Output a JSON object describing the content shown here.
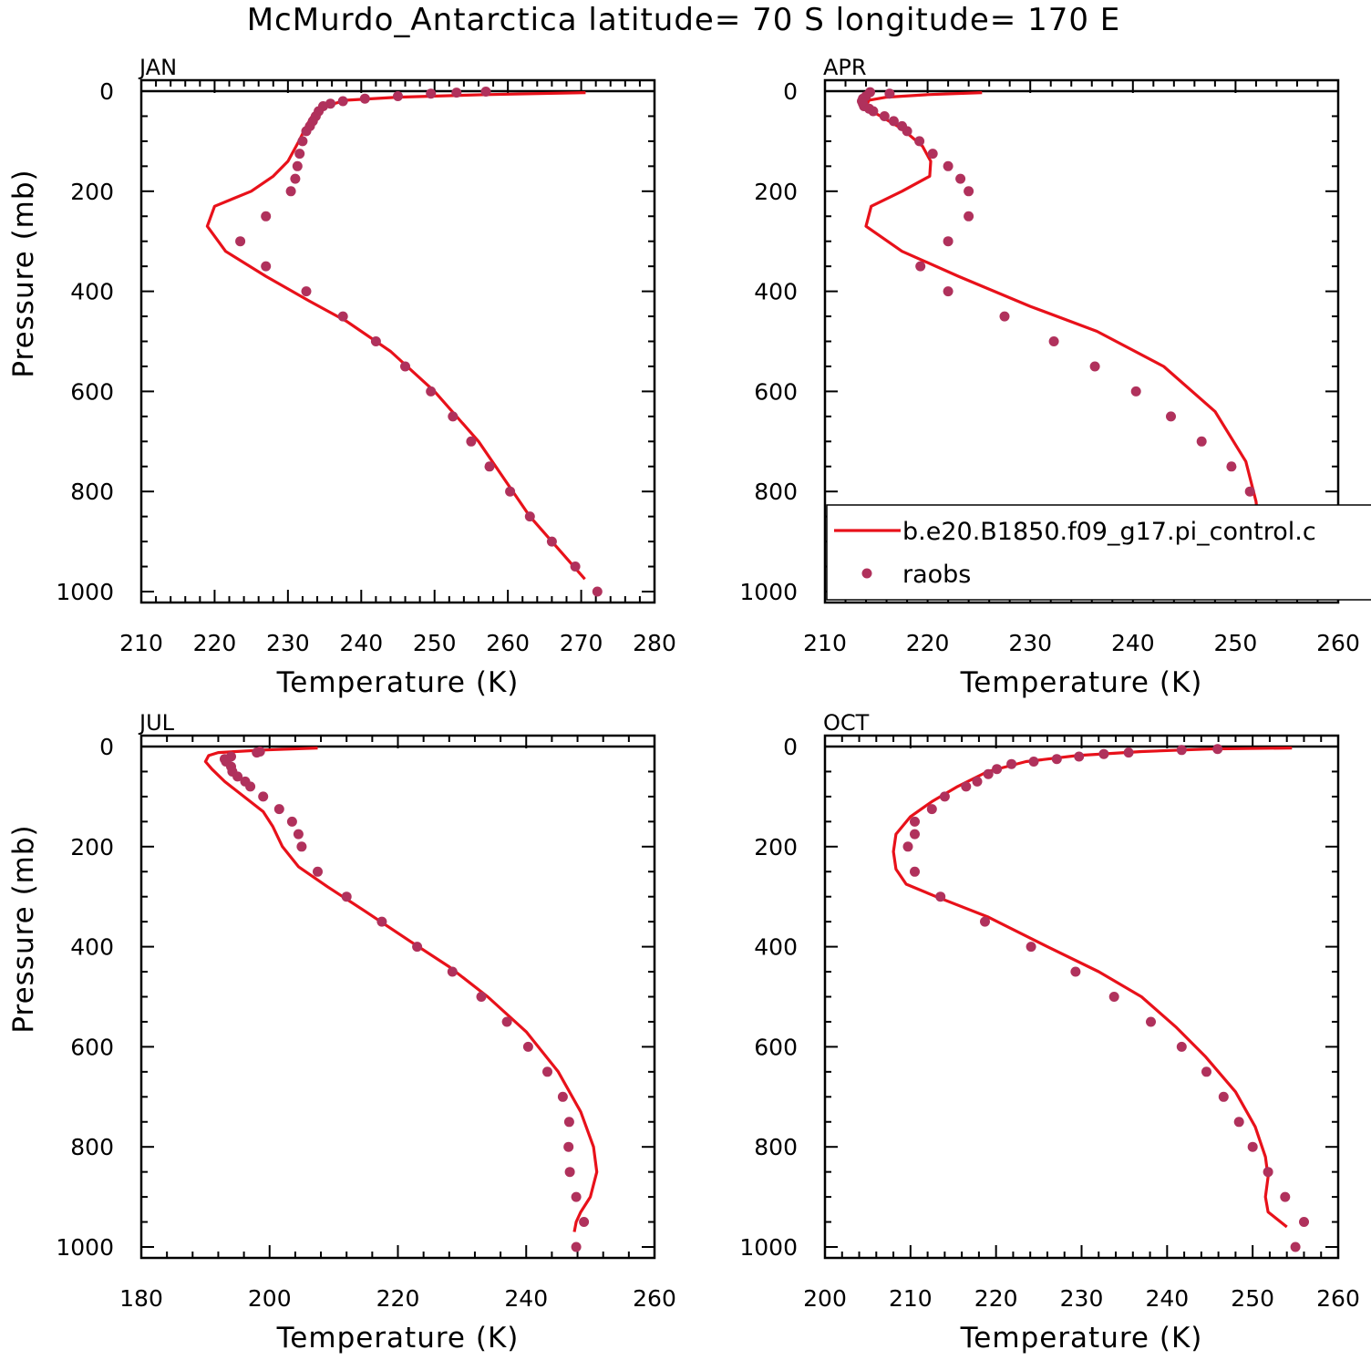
{
  "title": "McMurdo_Antarctica  latitude= 70 S longitude= 170 E",
  "colors": {
    "model": "#e8111a",
    "obs": "#b0315c",
    "axis": "#000000"
  },
  "legend": {
    "model": "b.e20.B1850.f09_g17.pi_control.c",
    "obs": "raobs"
  },
  "chart_data": [
    {
      "type": "line",
      "panel": "JAN",
      "xlabel": "Temperature (K)",
      "ylabel": "Pressure (mb)",
      "xlim": [
        210,
        280
      ],
      "xticks": [
        210,
        220,
        230,
        240,
        250,
        260,
        270,
        280
      ],
      "ylim": [
        0,
        1000
      ],
      "yticks": [
        0,
        200,
        400,
        600,
        800,
        1000
      ],
      "y_inverted": true,
      "series": [
        {
          "name": "b.e20.B1850.f09_g17.pi_control.c",
          "kind": "line",
          "x": [
            270.6,
            257.0,
            245.0,
            238.0,
            235.0,
            233.5,
            232.5,
            231.5,
            230.0,
            228.0,
            225.0,
            220.0,
            219.0,
            221.5,
            227.0,
            233.0,
            238.0,
            244.0,
            250.0,
            256.0,
            263.0,
            270.5
          ],
          "y": [
            3,
            7,
            12,
            18,
            30,
            45,
            70,
            100,
            140,
            170,
            200,
            230,
            270,
            320,
            370,
            420,
            460,
            520,
            600,
            700,
            850,
            975
          ]
        },
        {
          "name": "raobs",
          "kind": "scatter",
          "x": [
            257.0,
            253.0,
            249.5,
            245.0,
            240.5,
            237.5,
            235.8,
            234.8,
            234.2,
            233.8,
            233.4,
            233.0,
            232.5,
            232.0,
            231.6,
            231.3,
            231.0,
            230.4,
            227.0,
            223.5,
            227.0,
            232.5,
            237.5,
            242.0,
            246.0,
            249.5,
            252.5,
            255.0,
            257.5,
            260.3,
            263.0,
            266.0,
            269.2,
            272.2
          ],
          "y": [
            1,
            3,
            5,
            10,
            15,
            20,
            25,
            30,
            40,
            50,
            60,
            70,
            80,
            100,
            125,
            150,
            175,
            200,
            250,
            300,
            350,
            400,
            450,
            500,
            550,
            600,
            650,
            700,
            750,
            800,
            850,
            900,
            950,
            1000
          ]
        }
      ]
    },
    {
      "type": "line",
      "panel": "APR",
      "xlabel": "Temperature (K)",
      "ylabel": "",
      "xlim": [
        210,
        260
      ],
      "xticks": [
        210,
        220,
        230,
        240,
        250,
        260
      ],
      "ylim": [
        0,
        1000
      ],
      "yticks": [
        0,
        200,
        400,
        600,
        800,
        1000
      ],
      "y_inverted": true,
      "series": [
        {
          "name": "b.e20.B1850.f09_g17.pi_control.c",
          "kind": "line",
          "x": [
            225.3,
            220.0,
            216.0,
            214.3,
            214.0,
            215.0,
            217.5,
            219.5,
            220.3,
            220.2,
            217.5,
            214.5,
            214.0,
            217.5,
            223.0,
            230.0,
            236.5,
            243.0,
            248.0,
            251.0,
            252.0,
            252.2,
            251.8,
            250.8,
            250.5,
            250.8
          ],
          "y": [
            3,
            7,
            12,
            18,
            30,
            45,
            75,
            110,
            140,
            170,
            200,
            230,
            270,
            320,
            370,
            430,
            480,
            550,
            640,
            740,
            820,
            860,
            890,
            920,
            950,
            975
          ]
        },
        {
          "name": "raobs",
          "kind": "scatter",
          "x": [
            214.4,
            216.3,
            214.0,
            213.7,
            213.6,
            213.7,
            213.8,
            214.3,
            214.7,
            215.8,
            216.7,
            217.5,
            218.0,
            219.2,
            220.5,
            222.0,
            223.2,
            224.0,
            224.0,
            222.0,
            219.3,
            222.0,
            227.5,
            232.3,
            236.3,
            240.3,
            243.7,
            246.7,
            249.6,
            251.4,
            252.1,
            252.4,
            254.0,
            255.9,
            256.3
          ],
          "y": [
            2,
            5,
            10,
            15,
            20,
            25,
            30,
            35,
            40,
            50,
            60,
            70,
            80,
            100,
            125,
            150,
            175,
            200,
            250,
            300,
            350,
            400,
            450,
            500,
            550,
            600,
            650,
            700,
            750,
            800,
            850,
            900,
            950,
            1000,
            1000
          ]
        }
      ]
    },
    {
      "type": "line",
      "panel": "JUL",
      "xlabel": "Temperature (K)",
      "ylabel": "Pressure (mb)",
      "xlim": [
        180,
        260
      ],
      "xticks": [
        180,
        200,
        220,
        240,
        260
      ],
      "ylim": [
        0,
        1000
      ],
      "yticks": [
        0,
        200,
        400,
        600,
        800,
        1000
      ],
      "y_inverted": true,
      "series": [
        {
          "name": "b.e20.B1850.f09_g17.pi_control.c",
          "kind": "line",
          "x": [
            207.5,
            199.0,
            192.0,
            190.5,
            190.0,
            191.0,
            193.0,
            196.0,
            199.0,
            200.5,
            202.0,
            204.5,
            209.0,
            215.0,
            222.0,
            228.0,
            234.0,
            240.0,
            245.0,
            248.5,
            250.5,
            251.0,
            250.0,
            248.5,
            247.8,
            247.5
          ],
          "y": [
            3,
            7,
            12,
            18,
            30,
            45,
            70,
            100,
            130,
            160,
            200,
            240,
            280,
            330,
            390,
            440,
            500,
            570,
            650,
            730,
            800,
            850,
            900,
            930,
            950,
            970
          ]
        },
        {
          "name": "raobs",
          "kind": "scatter",
          "x": [
            198.5,
            198.0,
            194.0,
            193.0,
            193.2,
            194.0,
            194.2,
            195.0,
            196.2,
            197.0,
            199.0,
            201.5,
            203.5,
            204.5,
            205.0,
            207.5,
            212.0,
            217.5,
            223.0,
            228.5,
            233.0,
            237.0,
            240.3,
            243.3,
            245.7,
            246.7,
            246.6,
            246.8,
            247.8,
            249.0,
            247.8
          ],
          "y": [
            10,
            12,
            20,
            25,
            30,
            40,
            50,
            60,
            70,
            80,
            100,
            125,
            150,
            175,
            200,
            250,
            300,
            350,
            400,
            450,
            500,
            550,
            600,
            650,
            700,
            750,
            800,
            850,
            900,
            950,
            1000
          ]
        }
      ]
    },
    {
      "type": "line",
      "panel": "OCT",
      "xlabel": "Temperature (K)",
      "ylabel": "",
      "xlim": [
        200,
        260
      ],
      "xticks": [
        200,
        210,
        220,
        230,
        240,
        250,
        260
      ],
      "ylim": [
        0,
        1000
      ],
      "yticks": [
        0,
        200,
        400,
        600,
        800,
        1000
      ],
      "y_inverted": true,
      "series": [
        {
          "name": "b.e20.B1850.f09_g17.pi_control.c",
          "kind": "line",
          "x": [
            254.6,
            245.0,
            237.0,
            229.5,
            223.5,
            219.0,
            215.5,
            212.5,
            210.0,
            208.3,
            208.0,
            208.3,
            209.5,
            213.0,
            219.0,
            226.0,
            232.0,
            237.0,
            241.0,
            244.5,
            248.0,
            250.3,
            251.5,
            251.8,
            251.5,
            251.8,
            254.0
          ],
          "y": [
            3,
            5,
            10,
            18,
            30,
            50,
            80,
            110,
            140,
            175,
            210,
            245,
            275,
            300,
            340,
            400,
            450,
            500,
            560,
            620,
            690,
            760,
            820,
            860,
            900,
            930,
            960
          ]
        },
        {
          "name": "raobs",
          "kind": "scatter",
          "x": [
            245.9,
            241.7,
            235.5,
            232.6,
            229.7,
            227.1,
            224.4,
            221.8,
            220.1,
            219.1,
            217.8,
            216.5,
            214.0,
            212.5,
            210.5,
            210.5,
            209.7,
            210.5,
            213.5,
            218.7,
            224.1,
            229.3,
            233.8,
            238.1,
            241.7,
            244.6,
            246.6,
            248.4,
            250.0,
            251.8,
            253.8,
            256.0,
            255.0
          ],
          "y": [
            5,
            7,
            12,
            15,
            20,
            25,
            30,
            35,
            45,
            55,
            70,
            80,
            100,
            125,
            150,
            175,
            200,
            250,
            300,
            350,
            400,
            450,
            500,
            550,
            600,
            650,
            700,
            750,
            800,
            850,
            900,
            950,
            1000
          ]
        }
      ]
    }
  ]
}
